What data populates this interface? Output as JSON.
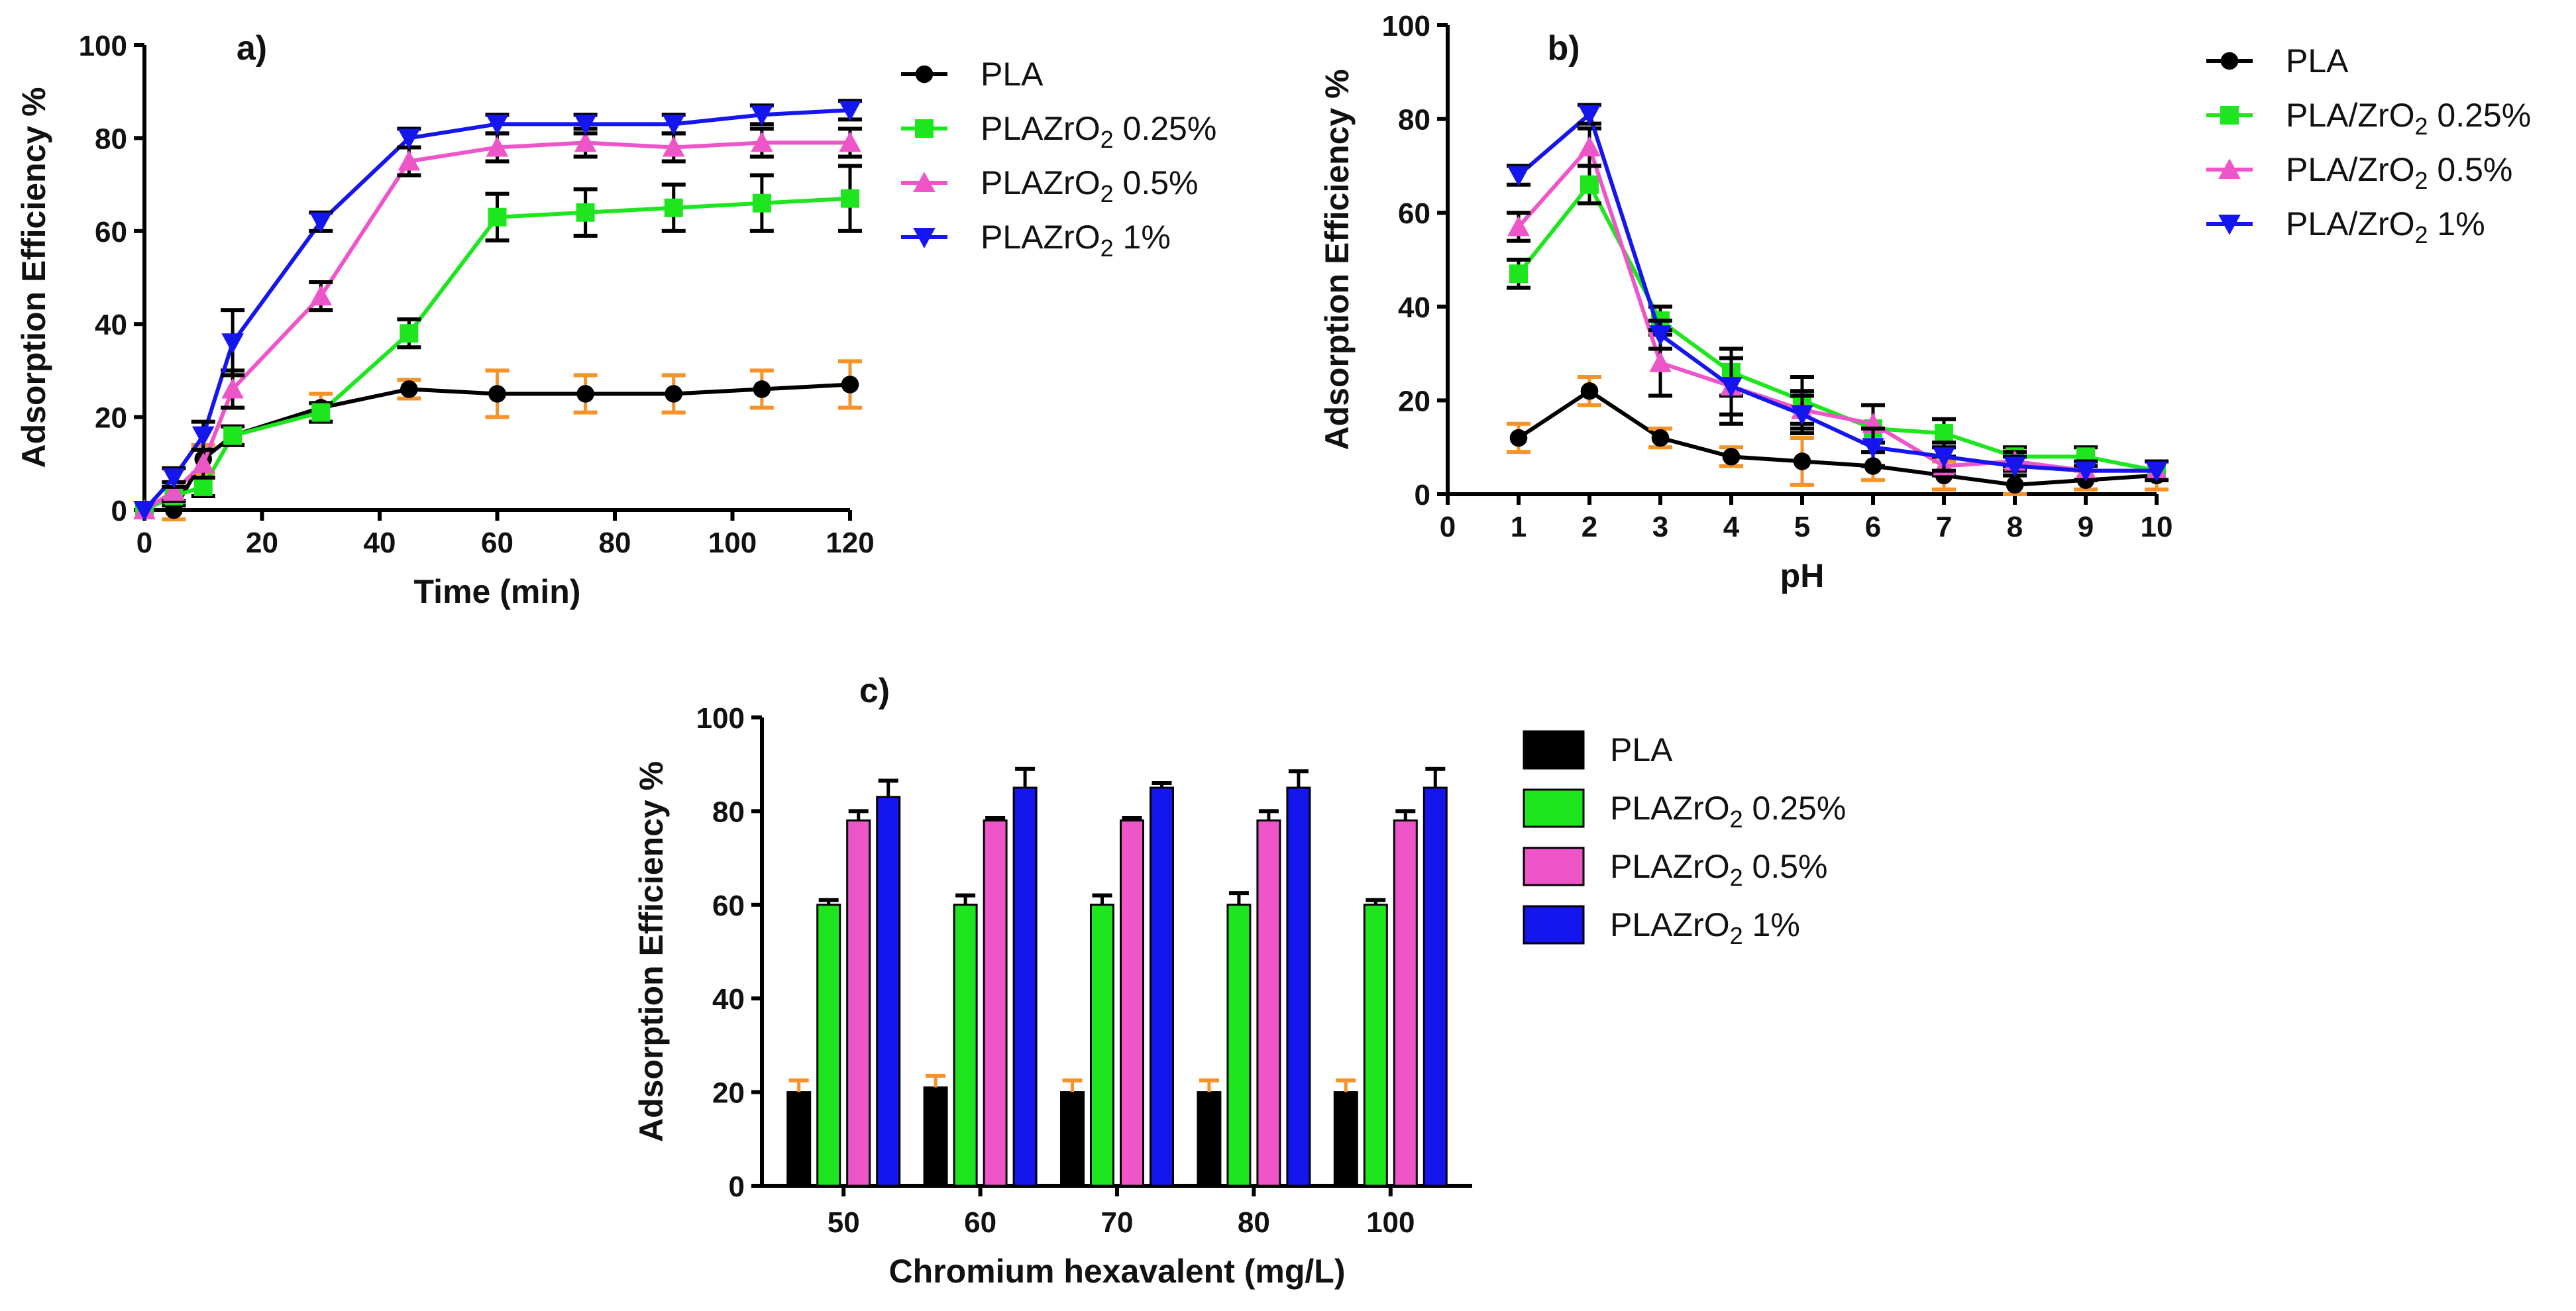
{
  "chart_data": [
    {
      "type": "line",
      "panel": "a)",
      "xlabel": "Time (min)",
      "ylabel": "Adsorption Efficiency %",
      "xlim": [
        0,
        120
      ],
      "ylim": [
        0,
        100
      ],
      "xticks": [
        "0",
        "20",
        "40",
        "60",
        "80",
        "100",
        "120"
      ],
      "yticks": [
        "0",
        "20",
        "40",
        "60",
        "80",
        "100"
      ],
      "x": [
        0,
        5,
        10,
        15,
        30,
        45,
        60,
        75,
        90,
        105,
        120
      ],
      "series": [
        {
          "name": "PLA",
          "color": "#000000",
          "marker": "circle",
          "values": [
            0,
            0,
            11,
            16,
            22,
            26,
            25,
            25,
            25,
            26,
            27
          ],
          "errors": [
            0,
            2,
            3,
            2,
            3,
            2,
            5,
            4,
            4,
            4,
            5
          ],
          "error_color": "#f5922a"
        },
        {
          "name": "PLAZrO2 0.25%",
          "color": "#1ee61e",
          "marker": "square",
          "values": [
            0,
            3,
            5,
            16,
            21,
            38,
            63,
            64,
            65,
            66,
            67
          ],
          "errors": [
            0,
            2,
            2,
            2,
            2,
            3,
            5,
            5,
            5,
            6,
            7
          ],
          "error_color": "#000000"
        },
        {
          "name": "PLAZrO2 0.5%",
          "color": "#ee55c8",
          "marker": "triangle-up",
          "values": [
            0,
            4,
            10,
            26,
            46,
            75,
            78,
            79,
            78,
            79,
            79
          ],
          "errors": [
            0,
            2,
            3,
            4,
            3,
            3,
            3,
            3,
            3,
            3,
            3
          ],
          "error_color": "#000000"
        },
        {
          "name": "PLAZrO2 1%",
          "color": "#1515ee",
          "marker": "triangle-down",
          "values": [
            0,
            7,
            16,
            36,
            62,
            80,
            83,
            83,
            83,
            85,
            86
          ],
          "errors": [
            0,
            2,
            3,
            7,
            2,
            2,
            2,
            2,
            2,
            2,
            2
          ],
          "error_color": "#000000"
        }
      ],
      "legend": [
        "PLA",
        "PLAZrO2 0.25%",
        "PLAZrO2 0.5%",
        "PLAZrO2 1%"
      ]
    },
    {
      "type": "line",
      "panel": "b)",
      "xlabel": "pH",
      "ylabel": "Adsorption Efficiency %",
      "xlim": [
        0,
        10
      ],
      "ylim": [
        0,
        100
      ],
      "xticks": [
        "0",
        "1",
        "2",
        "3",
        "4",
        "5",
        "6",
        "7",
        "8",
        "9",
        "10"
      ],
      "yticks": [
        "0",
        "20",
        "40",
        "60",
        "80",
        "100"
      ],
      "x": [
        1,
        2,
        3,
        4,
        5,
        6,
        7,
        8,
        9,
        10
      ],
      "series": [
        {
          "name": "PLA",
          "color": "#000000",
          "marker": "circle",
          "values": [
            12,
            22,
            12,
            8,
            7,
            6,
            4,
            2,
            3,
            4
          ],
          "errors": [
            3,
            3,
            2,
            2,
            5,
            3,
            3,
            2,
            2,
            3
          ],
          "error_color": "#f5922a"
        },
        {
          "name": "PLA/ZrO2 0.25%",
          "color": "#1ee61e",
          "marker": "square",
          "values": [
            47,
            66,
            37,
            26,
            20,
            14,
            13,
            8,
            8,
            5
          ],
          "errors": [
            3,
            4,
            3,
            5,
            5,
            5,
            3,
            2,
            2,
            2
          ],
          "error_color": "#000000"
        },
        {
          "name": "PLA/ZrO2 0.5%",
          "color": "#ee55c8",
          "marker": "triangle-up",
          "values": [
            57,
            74,
            28,
            23,
            18,
            15,
            6,
            7,
            5,
            5
          ],
          "errors": [
            3,
            4,
            7,
            6,
            4,
            4,
            2,
            2,
            2,
            2
          ],
          "error_color": "#000000"
        },
        {
          "name": "PLA/ZrO2 1%",
          "color": "#1515ee",
          "marker": "triangle-down",
          "values": [
            68,
            81,
            34,
            23,
            17,
            10,
            8,
            6,
            5,
            5
          ],
          "errors": [
            2,
            2,
            3,
            8,
            4,
            4,
            3,
            2,
            2,
            2
          ],
          "error_color": "#000000"
        }
      ],
      "legend": [
        "PLA",
        "PLA/ZrO2 0.25%",
        "PLA/ZrO2 0.5%",
        "PLA/ZrO2 1%"
      ]
    },
    {
      "type": "bar",
      "panel": "c)",
      "xlabel": "Chromium hexavalent (mg/L)",
      "ylabel": "Adsorption Efficiency %",
      "ylim": [
        0,
        100
      ],
      "yticks": [
        "0",
        "20",
        "40",
        "60",
        "80",
        "100"
      ],
      "categories": [
        "50",
        "60",
        "70",
        "80",
        "100"
      ],
      "series": [
        {
          "name": "PLA",
          "color": "#000000",
          "values": [
            20,
            21,
            20,
            20,
            20
          ],
          "errors": [
            2.5,
            2.5,
            2.5,
            2.5,
            2.5
          ],
          "error_color": "#f5922a"
        },
        {
          "name": "PLAZrO2 0.25%",
          "color": "#1ee61e",
          "values": [
            60,
            60,
            60,
            60,
            60
          ],
          "errors": [
            1,
            2,
            2,
            2.5,
            1
          ],
          "error_color": "#000000"
        },
        {
          "name": "PLAZrO2 0.5%",
          "color": "#ee55c8",
          "values": [
            78,
            78,
            78,
            78,
            78
          ],
          "errors": [
            2,
            0.5,
            0.5,
            2,
            2
          ],
          "error_color": "#000000"
        },
        {
          "name": "PLAZrO2 1%",
          "color": "#1515ee",
          "values": [
            83,
            85,
            85,
            85,
            85
          ],
          "errors": [
            3.5,
            4,
            1,
            3.5,
            4
          ],
          "error_color": "#000000"
        }
      ],
      "legend": [
        "PLA",
        "PLAZrO2 0.25%",
        "PLAZrO2 0.5%",
        "PLAZrO2 1%"
      ]
    }
  ]
}
